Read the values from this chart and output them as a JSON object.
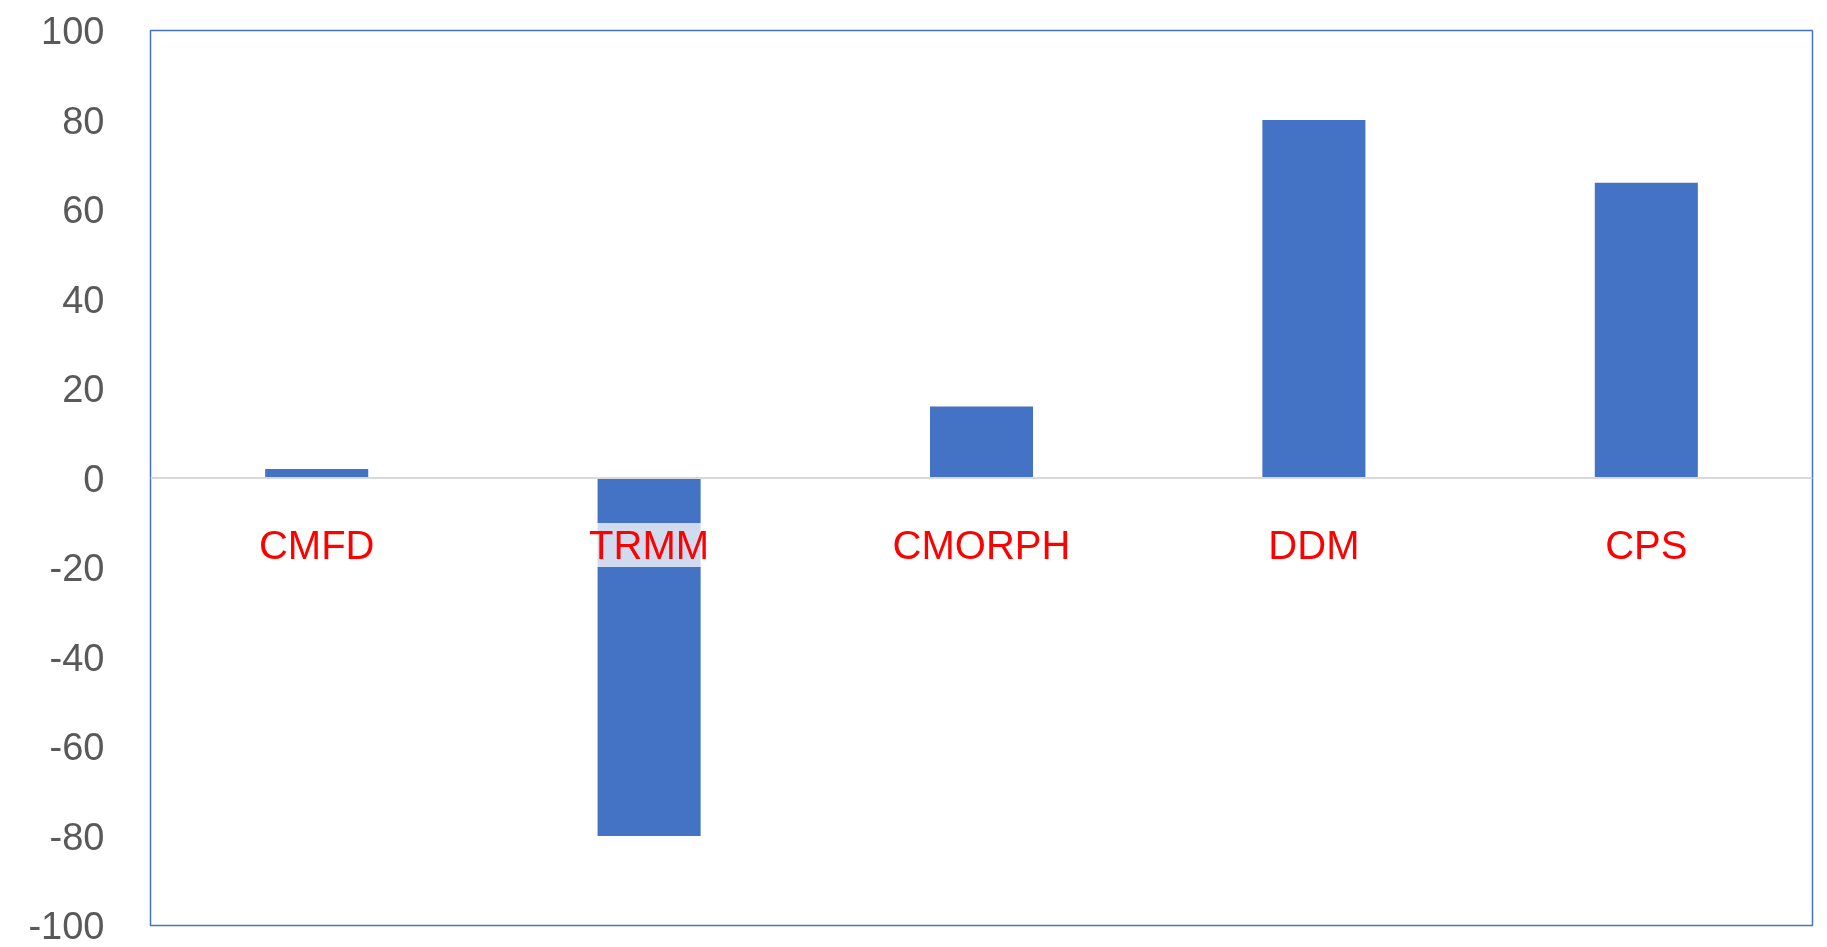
{
  "chart_data": {
    "type": "bar",
    "categories": [
      "CMFD",
      "TRMM",
      "CMORPH",
      "DDM",
      "CPS"
    ],
    "values": [
      2,
      -80,
      16,
      80,
      66
    ],
    "color": "#4472c4",
    "ylim": [
      -100,
      100
    ],
    "yticks": [
      -100,
      -80,
      -60,
      -40,
      -20,
      0,
      20,
      40,
      60,
      80,
      100
    ],
    "grid": false
  }
}
